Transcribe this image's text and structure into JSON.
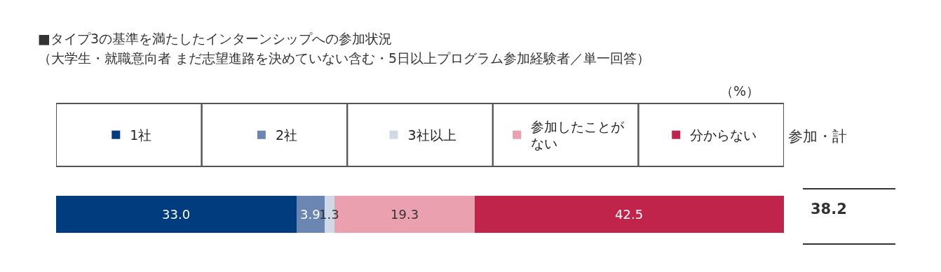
{
  "chart_data": {
    "type": "bar",
    "orientation": "horizontal",
    "stacked": true,
    "title": "■タイプ3の基準を満たしたインターンシップへの参加状況",
    "subtitle": "（大学生・就職意向者 まだ志望進路を決めていない含む・5日以上プログラム参加経験者／単一回答）",
    "categories": [
      null
    ],
    "series": [
      {
        "name": "1社",
        "color": "#013c7e",
        "values": [
          33.0
        ],
        "value_labels": [
          "33.0"
        ]
      },
      {
        "name": "2社",
        "color": "#6b86b0",
        "values": [
          3.9
        ],
        "value_labels": [
          "3.9"
        ]
      },
      {
        "name": "3社以上",
        "color": "#d0d9e5",
        "values": [
          1.3
        ],
        "value_labels": [
          "1.3"
        ]
      },
      {
        "name": "参加したことがない",
        "color": "#eba0b0",
        "values": [
          19.3
        ],
        "value_labels": [
          "19.3"
        ]
      },
      {
        "name": "分からない",
        "color": "#c0244a",
        "values": [
          42.5
        ],
        "value_labels": [
          "42.5"
        ]
      }
    ],
    "legend": "top",
    "annotations": [
      "（%）",
      "参加・計",
      "38.2"
    ]
  }
}
